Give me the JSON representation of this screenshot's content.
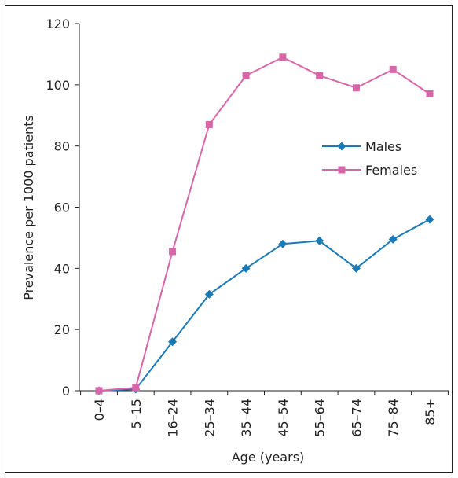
{
  "chart_data": {
    "type": "line",
    "title": "",
    "xlabel": "Age (years)",
    "ylabel": "Prevalence per 1000 patients",
    "categories": [
      "0–4",
      "5–15",
      "16–24",
      "25–34",
      "35–44",
      "45–54",
      "55–64",
      "65–74",
      "75–84",
      "85+"
    ],
    "ylim": [
      0,
      120
    ],
    "yticks": [
      0,
      20,
      40,
      60,
      80,
      100,
      120
    ],
    "grid": false,
    "legend_position": "right",
    "series": [
      {
        "name": "Males",
        "color": "#1a7ab6",
        "marker": "diamond",
        "values": [
          0,
          0.5,
          16,
          31.5,
          40,
          48,
          49,
          40,
          49.5,
          56
        ]
      },
      {
        "name": "Females",
        "color": "#d966a8",
        "marker": "square",
        "values": [
          0,
          1,
          45.5,
          87,
          103,
          109,
          103,
          99,
          105,
          97
        ]
      }
    ]
  }
}
